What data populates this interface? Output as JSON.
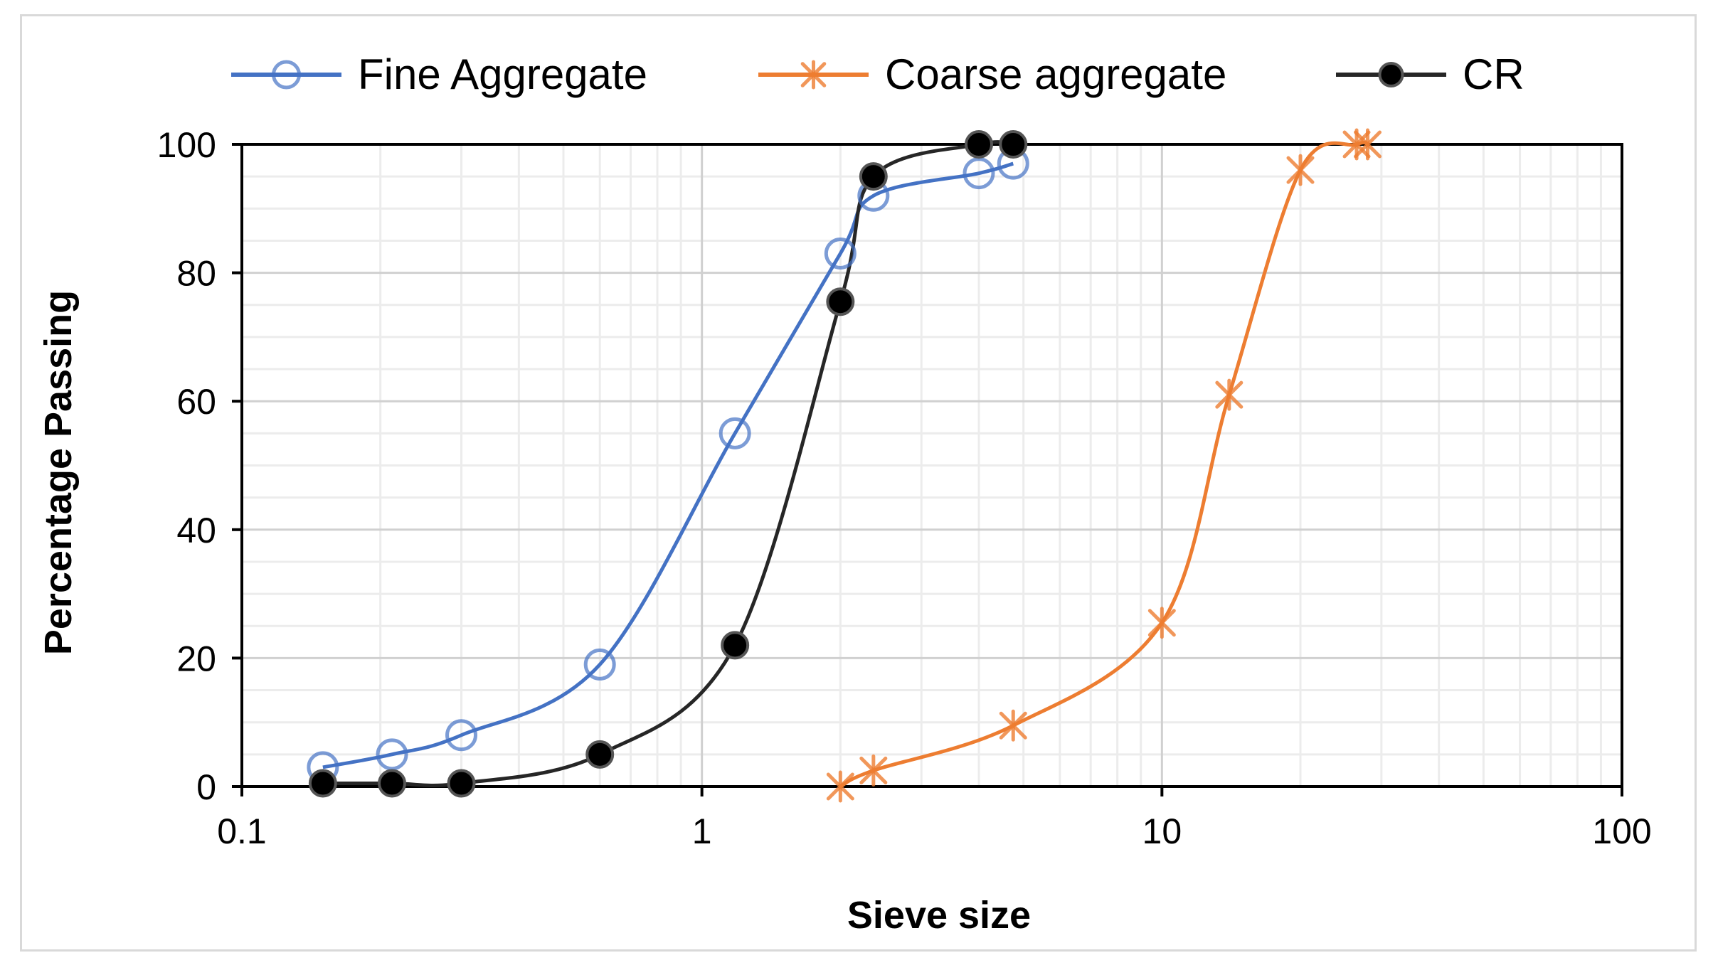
{
  "chart_data": {
    "type": "scatter",
    "x_scale": "log",
    "xlabel": "Sieve size",
    "ylabel": "Percentage Passing",
    "xlim": [
      0.1,
      100
    ],
    "ylim": [
      0,
      100
    ],
    "x_ticks": [
      {
        "value": 0.1,
        "label": "0.1"
      },
      {
        "value": 1,
        "label": "1"
      },
      {
        "value": 10,
        "label": "10"
      },
      {
        "value": 100,
        "label": "100"
      }
    ],
    "y_ticks": [
      {
        "value": 0,
        "label": "0"
      },
      {
        "value": 20,
        "label": "20"
      },
      {
        "value": 40,
        "label": "40"
      },
      {
        "value": 60,
        "label": "60"
      },
      {
        "value": 80,
        "label": "80"
      },
      {
        "value": 100,
        "label": "100"
      }
    ],
    "grid": true,
    "legend_position": "top",
    "series": [
      {
        "name": "Fine Aggregate",
        "color": "#4472c4",
        "marker": "open-circle",
        "points": [
          {
            "x": 0.15,
            "y": 3
          },
          {
            "x": 0.212,
            "y": 5
          },
          {
            "x": 0.3,
            "y": 8
          },
          {
            "x": 0.6,
            "y": 19
          },
          {
            "x": 1.18,
            "y": 55
          },
          {
            "x": 2.0,
            "y": 83
          },
          {
            "x": 2.36,
            "y": 92
          },
          {
            "x": 4.0,
            "y": 95.5
          },
          {
            "x": 4.75,
            "y": 97
          }
        ]
      },
      {
        "name": "Coarse aggregate",
        "color": "#ed7d31",
        "marker": "asterisk",
        "points": [
          {
            "x": 2.0,
            "y": 0
          },
          {
            "x": 2.36,
            "y": 2.5
          },
          {
            "x": 4.75,
            "y": 9.5
          },
          {
            "x": 10,
            "y": 25.5
          },
          {
            "x": 14,
            "y": 61
          },
          {
            "x": 20,
            "y": 96
          },
          {
            "x": 26.5,
            "y": 100
          },
          {
            "x": 28,
            "y": 100
          }
        ]
      },
      {
        "name": "CR",
        "color": "#262626",
        "marker": "filled-circle",
        "points": [
          {
            "x": 0.15,
            "y": 0.5
          },
          {
            "x": 0.212,
            "y": 0.5
          },
          {
            "x": 0.3,
            "y": 0.5
          },
          {
            "x": 0.6,
            "y": 5
          },
          {
            "x": 1.18,
            "y": 22
          },
          {
            "x": 2.0,
            "y": 75.5
          },
          {
            "x": 2.36,
            "y": 95
          },
          {
            "x": 4.0,
            "y": 100
          },
          {
            "x": 4.75,
            "y": 100
          }
        ]
      }
    ]
  }
}
